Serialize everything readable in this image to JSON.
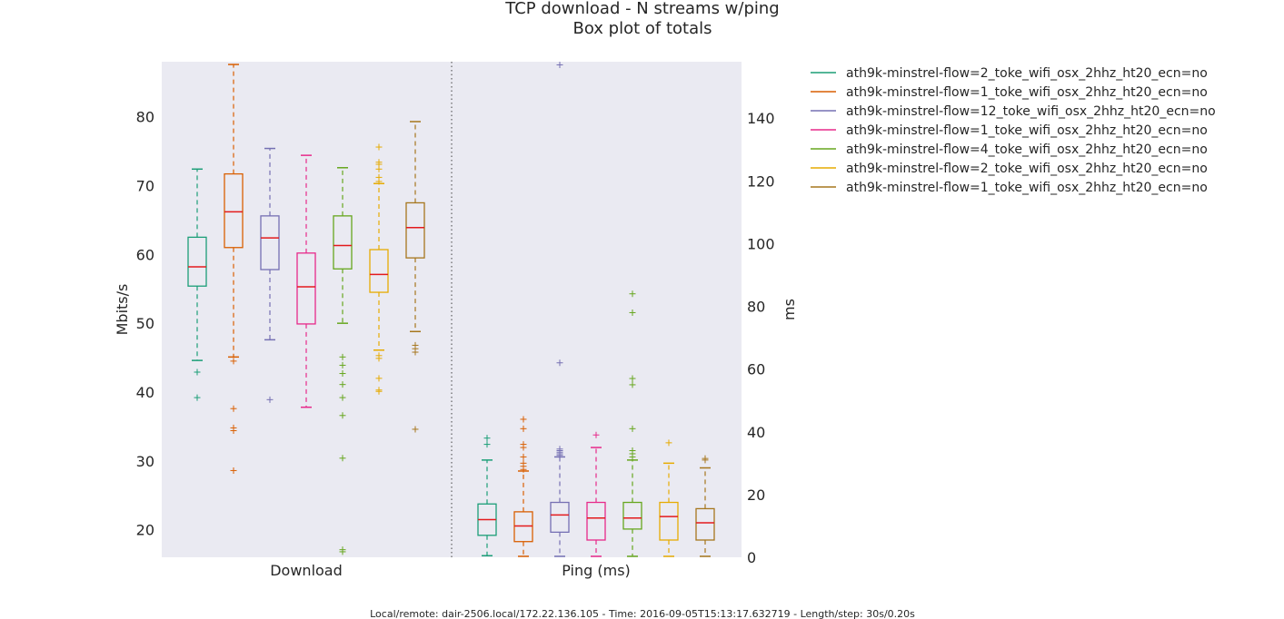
{
  "chart_data": {
    "type": "box",
    "title": "TCP download - N streams w/ping",
    "subtitle": "Box plot of totals",
    "groups": [
      {
        "name": "Download",
        "axis": "left"
      },
      {
        "name": "Ping (ms)",
        "axis": "right"
      }
    ],
    "left_axis": {
      "label": "Mbits/s",
      "range": [
        16,
        88
      ],
      "ticks": [
        20,
        30,
        40,
        50,
        60,
        70,
        80
      ]
    },
    "right_axis": {
      "label": "ms",
      "range": [
        0,
        158
      ],
      "ticks": [
        0,
        20,
        40,
        60,
        80,
        100,
        120,
        140
      ]
    },
    "grid": false,
    "legend_position": "outside right",
    "series": [
      {
        "name": "ath9k-minstrel-flow=2_toke_wifi_osx_2hhz_ht20_ecn=no",
        "color": "#1b9e77",
        "download": {
          "whisker_low": 44.6,
          "q1": 55.4,
          "median": 58.2,
          "q3": 62.5,
          "whisker_high": 72.4,
          "outliers": [
            42.9,
            39.2
          ]
        },
        "ping": {
          "whisker_low": 0.5,
          "q1": 7,
          "median": 12,
          "q3": 17,
          "whisker_high": 31,
          "outliers": [
            36,
            38
          ]
        }
      },
      {
        "name": "ath9k-minstrel-flow=1_toke_wifi_osx_2hhz_ht20_ecn=no",
        "color": "#d95f02",
        "download": {
          "whisker_low": 45.1,
          "q1": 61.0,
          "median": 66.2,
          "q3": 71.7,
          "whisker_high": 87.6,
          "outliers": [
            44.5,
            37.6,
            34.8,
            34.4,
            28.6
          ]
        },
        "ping": {
          "whisker_low": 0.3,
          "q1": 5,
          "median": 10,
          "q3": 14.5,
          "whisker_high": 27.5,
          "outliers": [
            28,
            29,
            30,
            32,
            35,
            36,
            41,
            44
          ]
        }
      },
      {
        "name": "ath9k-minstrel-flow=12_toke_wifi_osx_2hhz_ht20_ecn=no",
        "color": "#7570b3",
        "download": {
          "whisker_low": 47.6,
          "q1": 57.8,
          "median": 62.4,
          "q3": 65.6,
          "whisker_high": 75.4,
          "outliers": [
            38.9
          ]
        },
        "ping": {
          "whisker_low": 0.3,
          "q1": 8,
          "median": 13.5,
          "q3": 17.5,
          "whisker_high": 32,
          "outliers": [
            32.5,
            33,
            33.5,
            34,
            34.5,
            62,
            157
          ]
        }
      },
      {
        "name": "ath9k-minstrel-flow=1_toke_wifi_osx_2hhz_ht20_ecn=no",
        "color": "#e7298a",
        "download": {
          "whisker_low": 37.8,
          "q1": 49.9,
          "median": 55.3,
          "q3": 60.2,
          "whisker_high": 74.4,
          "outliers": []
        },
        "ping": {
          "whisker_low": 0.3,
          "q1": 5.5,
          "median": 12.5,
          "q3": 17.5,
          "whisker_high": 35,
          "outliers": [
            39
          ]
        }
      },
      {
        "name": "ath9k-minstrel-flow=4_toke_wifi_osx_2hhz_ht20_ecn=no",
        "color": "#66a61e",
        "download": {
          "whisker_low": 50.0,
          "q1": 57.9,
          "median": 61.3,
          "q3": 65.6,
          "whisker_high": 72.6,
          "outliers": [
            45.1,
            43.9,
            42.7,
            41.1,
            39.2,
            36.6,
            30.4,
            17.1,
            16.8
          ]
        },
        "ping": {
          "whisker_low": 0.3,
          "q1": 9,
          "median": 12.5,
          "q3": 17.5,
          "whisker_high": 31,
          "outliers": [
            32,
            33,
            34,
            41,
            55,
            57,
            78,
            84
          ]
        }
      },
      {
        "name": "ath9k-minstrel-flow=2_toke_wifi_osx_2hhz_ht20_ecn=no",
        "color": "#e6ab02",
        "download": {
          "whisker_low": 46.1,
          "q1": 54.5,
          "median": 57.1,
          "q3": 60.7,
          "whisker_high": 70.3,
          "outliers": [
            70.6,
            71.2,
            72.4,
            73.1,
            73.4,
            75.6,
            45.3,
            44.9,
            42.0,
            40.3,
            40.1
          ]
        },
        "ping": {
          "whisker_low": 0.3,
          "q1": 5.5,
          "median": 13,
          "q3": 17.5,
          "whisker_high": 30,
          "outliers": [
            36.5
          ]
        }
      },
      {
        "name": "ath9k-minstrel-flow=1_toke_wifi_osx_2hhz_ht20_ecn=no",
        "color": "#a6761d",
        "download": {
          "whisker_low": 48.8,
          "q1": 59.5,
          "median": 63.9,
          "q3": 67.5,
          "whisker_high": 79.3,
          "outliers": [
            46.8,
            46.3,
            45.8,
            34.6
          ]
        },
        "ping": {
          "whisker_low": 0.3,
          "q1": 5.5,
          "median": 11,
          "q3": 15.5,
          "whisker_high": 28.5,
          "outliers": [
            31,
            31.5
          ]
        }
      }
    ]
  },
  "footer": "Local/remote: dair-2506.local/172.22.136.105 - Time: 2016-09-05T15:13:17.632719 - Length/step: 30s/0.20s"
}
